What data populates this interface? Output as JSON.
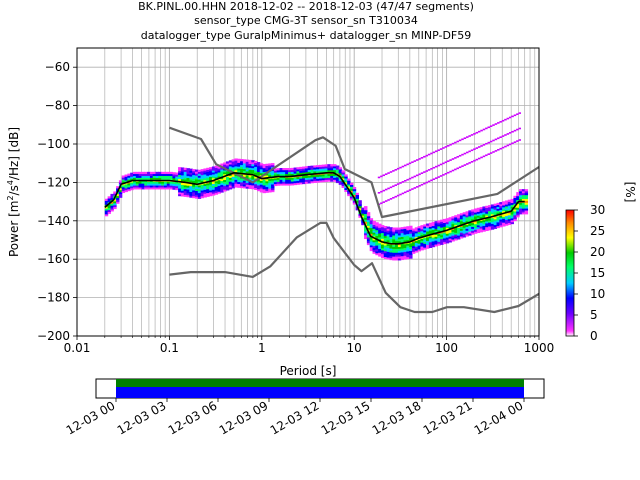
{
  "title_lines": [
    "BK.PINL.00.HHN   2018-12-02 -- 2018-12-03  (47/47 segments)",
    "sensor_type CMG-3T sensor_sn T310034",
    "datalogger_type GuralpMinimus+ datalogger_sn MINP-DF59"
  ],
  "colorbar": {
    "label": "[%]",
    "ticks": [
      "0",
      "5",
      "10",
      "15",
      "20",
      "25",
      "30"
    ],
    "range": [
      0,
      30
    ]
  },
  "timeline": {
    "tick_labels": [
      "12-03 00",
      "12-03 03",
      "12-03 06",
      "12-03 09",
      "12-03 12",
      "12-03 15",
      "12-03 18",
      "12-03 21",
      "12-04 00"
    ]
  },
  "chart_data": {
    "type": "heatmap",
    "title": "BK.PINL.00.HHN   2018-12-02 -- 2018-12-03  (47/47 segments)",
    "xlabel": "Period [s]",
    "ylabel_parts": [
      "Power [m",
      "2",
      "/s",
      "4",
      "/Hz] [dB]"
    ],
    "x_scale": "log",
    "xlim": [
      0.01,
      1000
    ],
    "ylim": [
      -200,
      -50
    ],
    "x_ticks": [
      0.01,
      0.1,
      1,
      10,
      100,
      1000
    ],
    "x_tick_labels": [
      "0.01",
      "0.1",
      "1",
      "10",
      "100",
      "1000"
    ],
    "y_ticks": [
      -200,
      -180,
      -160,
      -140,
      -120,
      -100,
      -80,
      -60
    ],
    "y_tick_labels": [
      "−200",
      "−180",
      "−160",
      "−140",
      "−120",
      "−100",
      "−80",
      "−60"
    ],
    "grid": true,
    "series": [
      {
        "kind": "median",
        "color": "#000000",
        "x": [
          0.02,
          0.025,
          0.03,
          0.04,
          0.06,
          0.1,
          0.15,
          0.2,
          0.3,
          0.5,
          0.8,
          1,
          1.5,
          2,
          3,
          5,
          6,
          7,
          8,
          10,
          12,
          15,
          20,
          25,
          30,
          40,
          50,
          70,
          100,
          150,
          200,
          300,
          500,
          600,
          700
        ],
        "y": [
          -133,
          -129,
          -121,
          -119,
          -119,
          -119,
          -120,
          -121,
          -119,
          -115,
          -116,
          -118,
          -117,
          -117,
          -116,
          -115,
          -115,
          -117,
          -121,
          -128,
          -138,
          -148,
          -151,
          -152,
          -152,
          -151,
          -149,
          -147,
          -145,
          -142,
          -140,
          -138,
          -135,
          -130,
          -130
        ]
      },
      {
        "kind": "high-noise-model",
        "color": "#666666",
        "x": [
          0.1,
          0.22,
          0.32,
          0.8,
          3.8,
          4.6,
          6.3,
          7.9,
          15.4,
          20,
          354.8,
          1000
        ],
        "y": [
          -91.5,
          -97.4,
          -110.5,
          -120,
          -98,
          -96.5,
          -101,
          -113,
          -120,
          -138,
          -126,
          -112
        ]
      },
      {
        "kind": "low-noise-model",
        "color": "#666666",
        "x": [
          0.1,
          0.17,
          0.4,
          0.8,
          1.24,
          2.4,
          4.3,
          5,
          6,
          10,
          12,
          15.6,
          21.9,
          31.6,
          45,
          70,
          101,
          154,
          328,
          600,
          1000
        ],
        "y": [
          -168,
          -166.7,
          -166.7,
          -169.2,
          -163.7,
          -148.6,
          -141.1,
          -141.1,
          -149,
          -163,
          -166.2,
          -162.1,
          -177.5,
          -185,
          -187.5,
          -187.5,
          -185,
          -185,
          -187.5,
          -184.4,
          -178
        ]
      }
    ],
    "colorbar_label": "[%]"
  }
}
